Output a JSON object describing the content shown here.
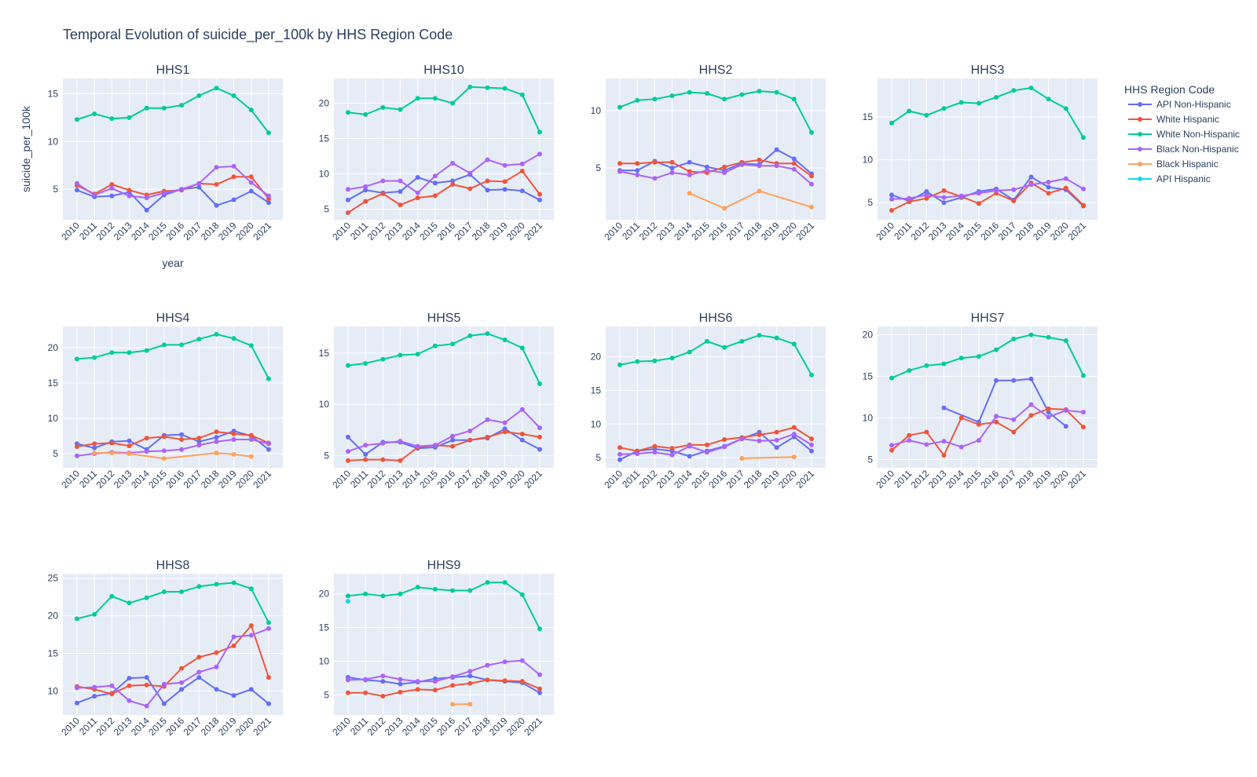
{
  "chart_data": {
    "type": "line",
    "title": "Temporal Evolution of suicide_per_100k by HHS Region Code",
    "xlabel": "year",
    "ylabel": "suicide_per_100k",
    "legend": {
      "title": "HHS Region Code",
      "placement": "right"
    },
    "grid": true,
    "x": [
      2010,
      2011,
      2012,
      2013,
      2014,
      2015,
      2016,
      2017,
      2018,
      2019,
      2020,
      2021
    ],
    "series_colors": {
      "API Non-Hispanic": "#636efa",
      "White Hispanic": "#EF553B",
      "White Non-Hispanic": "#00cc96",
      "Black Non-Hispanic": "#ab63fa",
      "Black Hispanic": "#FFA15A",
      "API Hispanic": "#19d3f3"
    },
    "panels": [
      {
        "name": "HHS1",
        "ylim": [
          1.8,
          16.6
        ],
        "yticks": [
          5,
          10,
          15
        ],
        "series": [
          {
            "name": "White Non-Hispanic",
            "values": [
              12.3,
              12.9,
              12.4,
              12.5,
              13.5,
              13.5,
              13.8,
              14.8,
              15.6,
              14.8,
              13.3,
              10.9
            ]
          },
          {
            "name": "API Non-Hispanic",
            "values": [
              4.9,
              4.2,
              4.3,
              4.7,
              2.8,
              4.4,
              5.0,
              5.2,
              3.3,
              3.9,
              4.8,
              3.6
            ]
          },
          {
            "name": "White Hispanic",
            "values": [
              5.4,
              4.5,
              5.5,
              4.9,
              4.4,
              4.8,
              4.9,
              5.6,
              5.5,
              6.3,
              6.3,
              4.0
            ]
          },
          {
            "name": "Black Non-Hispanic",
            "values": [
              5.6,
              4.4,
              5.1,
              4.3,
              4.1,
              4.6,
              5.0,
              5.6,
              7.3,
              7.4,
              5.7,
              4.3
            ]
          }
        ]
      },
      {
        "name": "HHS10",
        "ylim": [
          3.5,
          23.5
        ],
        "yticks": [
          5,
          10,
          15,
          20
        ],
        "series": [
          {
            "name": "White Non-Hispanic",
            "values": [
              18.7,
              18.4,
              19.4,
              19.1,
              20.7,
              20.7,
              20.0,
              22.3,
              22.2,
              22.1,
              21.2,
              15.9
            ]
          },
          {
            "name": "API Non-Hispanic",
            "values": [
              6.3,
              7.7,
              7.3,
              7.5,
              9.5,
              8.7,
              9.0,
              9.9,
              7.7,
              7.8,
              7.6,
              6.3
            ]
          },
          {
            "name": "White Hispanic",
            "values": [
              4.5,
              6.1,
              7.2,
              5.6,
              6.6,
              6.9,
              8.5,
              7.9,
              9.0,
              8.9,
              10.4,
              7.1
            ]
          },
          {
            "name": "Black Non-Hispanic",
            "values": [
              7.8,
              8.2,
              9.0,
              9.0,
              7.3,
              9.7,
              11.5,
              10.1,
              12.0,
              11.2,
              11.4,
              12.8
            ]
          }
        ]
      },
      {
        "name": "HHS2",
        "ylim": [
          0.5,
          12.8
        ],
        "yticks": [
          5,
          10
        ],
        "series": [
          {
            "name": "White Non-Hispanic",
            "values": [
              10.3,
              10.9,
              11.0,
              11.3,
              11.6,
              11.5,
              11.0,
              11.4,
              11.7,
              11.6,
              11.0,
              8.1
            ]
          },
          {
            "name": "API Non-Hispanic",
            "values": [
              4.8,
              4.8,
              5.6,
              5.0,
              5.5,
              5.1,
              4.8,
              5.4,
              5.3,
              6.6,
              5.8,
              4.5
            ]
          },
          {
            "name": "White Hispanic",
            "values": [
              5.4,
              5.4,
              5.5,
              5.5,
              4.7,
              4.6,
              5.1,
              5.5,
              5.7,
              5.4,
              5.4,
              4.3
            ]
          },
          {
            "name": "Black Non-Hispanic",
            "values": [
              4.7,
              4.4,
              4.1,
              4.6,
              4.4,
              4.8,
              4.6,
              5.3,
              5.2,
              5.2,
              4.9,
              3.6
            ]
          },
          {
            "name": "Black Hispanic",
            "values": [
              null,
              null,
              null,
              null,
              2.8,
              null,
              1.5,
              null,
              3.0,
              null,
              null,
              1.6
            ]
          }
        ]
      },
      {
        "name": "HHS3",
        "ylim": [
          3.0,
          19.5
        ],
        "yticks": [
          5,
          10,
          15
        ],
        "series": [
          {
            "name": "White Non-Hispanic",
            "values": [
              14.3,
              15.7,
              15.2,
              16.0,
              16.7,
              16.6,
              17.3,
              18.1,
              18.4,
              17.1,
              16.0,
              12.6
            ]
          },
          {
            "name": "API Non-Hispanic",
            "values": [
              5.9,
              5.2,
              6.3,
              5.0,
              5.6,
              6.3,
              6.6,
              5.3,
              8.0,
              6.8,
              6.5,
              4.6
            ]
          },
          {
            "name": "White Hispanic",
            "values": [
              4.1,
              5.1,
              5.5,
              6.4,
              5.7,
              4.9,
              6.1,
              5.2,
              7.3,
              6.1,
              6.7,
              4.7
            ]
          },
          {
            "name": "Black Non-Hispanic",
            "values": [
              5.4,
              5.5,
              5.9,
              5.6,
              5.8,
              6.1,
              6.4,
              6.5,
              7.1,
              7.4,
              7.8,
              6.6
            ]
          }
        ]
      },
      {
        "name": "HHS4",
        "ylim": [
          3.0,
          23.0
        ],
        "yticks": [
          5,
          10,
          15,
          20
        ],
        "series": [
          {
            "name": "White Non-Hispanic",
            "values": [
              18.4,
              18.6,
              19.3,
              19.3,
              19.6,
              20.4,
              20.4,
              21.2,
              21.9,
              21.3,
              20.3,
              15.6
            ]
          },
          {
            "name": "API Non-Hispanic",
            "values": [
              6.4,
              5.8,
              6.7,
              6.8,
              5.6,
              7.6,
              7.7,
              6.7,
              7.3,
              8.2,
              7.5,
              5.6
            ]
          },
          {
            "name": "White Hispanic",
            "values": [
              6.0,
              6.4,
              6.5,
              6.1,
              7.2,
              7.4,
              7.0,
              7.2,
              8.1,
              7.8,
              7.6,
              6.5
            ]
          },
          {
            "name": "Black Non-Hispanic",
            "values": [
              4.7,
              5.0,
              5.2,
              5.1,
              5.3,
              5.4,
              5.6,
              6.2,
              6.7,
              7.0,
              7.0,
              6.4
            ]
          },
          {
            "name": "Black Hispanic",
            "values": [
              null,
              5.1,
              5.1,
              5.0,
              null,
              4.3,
              null,
              null,
              5.1,
              4.9,
              4.6,
              null
            ]
          }
        ]
      },
      {
        "name": "HHS5",
        "ylim": [
          3.8,
          17.6
        ],
        "yticks": [
          5,
          10,
          15
        ],
        "series": [
          {
            "name": "White Non-Hispanic",
            "values": [
              13.8,
              14.0,
              14.4,
              14.8,
              14.9,
              15.7,
              15.9,
              16.7,
              16.9,
              16.3,
              15.5,
              12.0
            ]
          },
          {
            "name": "API Non-Hispanic",
            "values": [
              6.8,
              5.1,
              6.3,
              6.3,
              5.7,
              5.8,
              6.5,
              6.5,
              6.7,
              7.6,
              6.5,
              5.6
            ]
          },
          {
            "name": "White Hispanic",
            "values": [
              4.5,
              4.6,
              4.6,
              4.5,
              5.8,
              6.0,
              5.9,
              6.5,
              6.8,
              7.3,
              7.1,
              6.8
            ]
          },
          {
            "name": "Black Non-Hispanic",
            "values": [
              5.4,
              6.0,
              6.2,
              6.4,
              5.9,
              6.0,
              6.9,
              7.4,
              8.5,
              8.2,
              9.5,
              7.7
            ]
          }
        ]
      },
      {
        "name": "HHS6",
        "ylim": [
          3.5,
          24.5
        ],
        "yticks": [
          5,
          10,
          15,
          20
        ],
        "series": [
          {
            "name": "White Non-Hispanic",
            "values": [
              18.8,
              19.3,
              19.4,
              19.8,
              20.7,
              22.3,
              21.4,
              22.3,
              23.2,
              22.8,
              21.9,
              17.3
            ]
          },
          {
            "name": "API Non-Hispanic",
            "values": [
              4.7,
              6.0,
              6.3,
              6.0,
              5.2,
              6.0,
              6.7,
              7.8,
              8.8,
              6.5,
              8.1,
              6.0
            ]
          },
          {
            "name": "White Hispanic",
            "values": [
              6.5,
              6.0,
              6.7,
              6.4,
              6.9,
              6.9,
              7.7,
              8.0,
              8.4,
              8.8,
              9.5,
              7.8
            ]
          },
          {
            "name": "Black Non-Hispanic",
            "values": [
              5.5,
              5.6,
              5.8,
              5.4,
              6.7,
              5.8,
              6.6,
              7.8,
              7.5,
              7.6,
              8.5,
              6.9
            ]
          },
          {
            "name": "Black Hispanic",
            "values": [
              null,
              null,
              null,
              null,
              null,
              null,
              null,
              4.9,
              null,
              null,
              5.1,
              null
            ]
          }
        ]
      },
      {
        "name": "HHS7",
        "ylim": [
          4.0,
          21.0
        ],
        "yticks": [
          5,
          10,
          15,
          20
        ],
        "series": [
          {
            "name": "White Non-Hispanic",
            "values": [
              14.8,
              15.7,
              16.3,
              16.5,
              17.2,
              17.4,
              18.2,
              19.5,
              20.0,
              19.7,
              19.3,
              15.1
            ]
          },
          {
            "name": "API Non-Hispanic",
            "values": [
              null,
              null,
              null,
              11.2,
              null,
              9.5,
              14.5,
              14.5,
              14.7,
              10.7,
              9.0,
              null
            ]
          },
          {
            "name": "White Hispanic",
            "values": [
              6.1,
              7.9,
              8.3,
              5.5,
              10.0,
              9.2,
              9.5,
              8.3,
              10.3,
              11.1,
              11.0,
              8.9
            ]
          },
          {
            "name": "Black Non-Hispanic",
            "values": [
              6.7,
              7.3,
              6.8,
              7.2,
              6.5,
              7.3,
              10.2,
              9.8,
              11.6,
              10.1,
              10.9,
              10.7
            ]
          }
        ]
      },
      {
        "name": "HHS8",
        "ylim": [
          6.8,
          25.6
        ],
        "yticks": [
          10,
          15,
          20,
          25
        ],
        "series": [
          {
            "name": "White Non-Hispanic",
            "values": [
              19.6,
              20.2,
              22.6,
              21.7,
              22.4,
              23.2,
              23.2,
              23.9,
              24.2,
              24.4,
              23.6,
              19.1
            ]
          },
          {
            "name": "API Non-Hispanic",
            "values": [
              8.4,
              9.3,
              9.7,
              11.7,
              11.8,
              8.3,
              10.2,
              11.8,
              10.2,
              9.4,
              10.2,
              8.3
            ]
          },
          {
            "name": "White Hispanic",
            "values": [
              10.6,
              10.2,
              9.6,
              10.7,
              10.8,
              10.6,
              13.0,
              14.5,
              15.1,
              16.0,
              18.7,
              11.8
            ]
          },
          {
            "name": "Black Non-Hispanic",
            "values": [
              10.4,
              10.5,
              10.7,
              8.7,
              8.0,
              10.9,
              11.1,
              12.5,
              13.2,
              17.2,
              17.4,
              18.3
            ]
          }
        ]
      },
      {
        "name": "HHS9",
        "ylim": [
          2.0,
          23.0
        ],
        "yticks": [
          5,
          10,
          15,
          20
        ],
        "series": [
          {
            "name": "White Non-Hispanic",
            "values": [
              19.7,
              20.0,
              19.7,
              20.0,
              21.0,
              20.7,
              20.5,
              20.5,
              21.7,
              21.7,
              19.9,
              14.8
            ]
          },
          {
            "name": "API Non-Hispanic",
            "values": [
              7.6,
              7.2,
              7.0,
              6.6,
              6.9,
              7.4,
              7.6,
              7.8,
              7.2,
              7.0,
              6.8,
              5.3
            ]
          },
          {
            "name": "White Hispanic",
            "values": [
              5.3,
              5.3,
              4.8,
              5.4,
              5.8,
              5.7,
              6.4,
              6.7,
              7.2,
              7.1,
              7.0,
              5.9
            ]
          },
          {
            "name": "Black Non-Hispanic",
            "values": [
              7.2,
              7.3,
              7.8,
              7.3,
              7.0,
              7.0,
              7.7,
              8.5,
              9.4,
              9.9,
              10.1,
              8.0
            ]
          },
          {
            "name": "Black Hispanic",
            "values": [
              null,
              null,
              null,
              null,
              null,
              null,
              3.6,
              3.6,
              null,
              null,
              null,
              null
            ]
          },
          {
            "name": "API Hispanic",
            "values": [
              18.9,
              null,
              null,
              null,
              null,
              null,
              null,
              null,
              null,
              null,
              null,
              null
            ]
          }
        ]
      }
    ],
    "legend_order": [
      "API Non-Hispanic",
      "White Hispanic",
      "White Non-Hispanic",
      "Black Non-Hispanic",
      "Black Hispanic",
      "API Hispanic"
    ]
  }
}
